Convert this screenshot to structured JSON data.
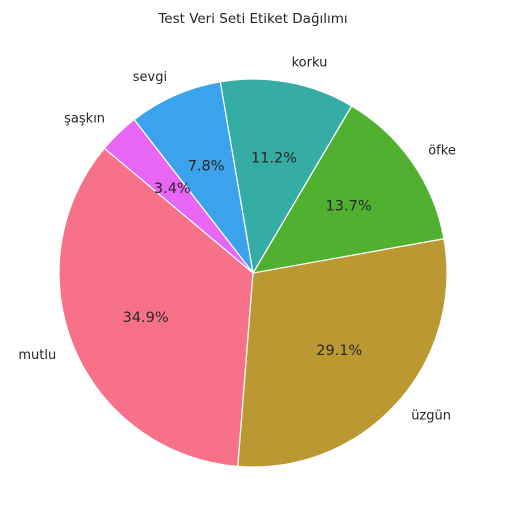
{
  "chart_data": {
    "type": "pie",
    "title": "Test Veri Seti Etiket Dağılımı",
    "slices": [
      {
        "label": "mutlu",
        "value": 34.9,
        "pct_label": "34.9%",
        "color": "#f77189"
      },
      {
        "label": "üzgün",
        "value": 29.1,
        "pct_label": "29.1%",
        "color": "#bb9832"
      },
      {
        "label": "öfke",
        "value": 13.7,
        "pct_label": "13.7%",
        "color": "#50b131"
      },
      {
        "label": "korku",
        "value": 11.2,
        "pct_label": "11.2%",
        "color": "#36ada4"
      },
      {
        "label": "sevgi",
        "value": 7.8,
        "pct_label": "7.8%",
        "color": "#3ba3ec"
      },
      {
        "label": "şaşkın",
        "value": 3.4,
        "pct_label": "3.4%",
        "color": "#e866f4"
      }
    ],
    "start_angle_deg": 140,
    "direction": "counterclockwise"
  }
}
